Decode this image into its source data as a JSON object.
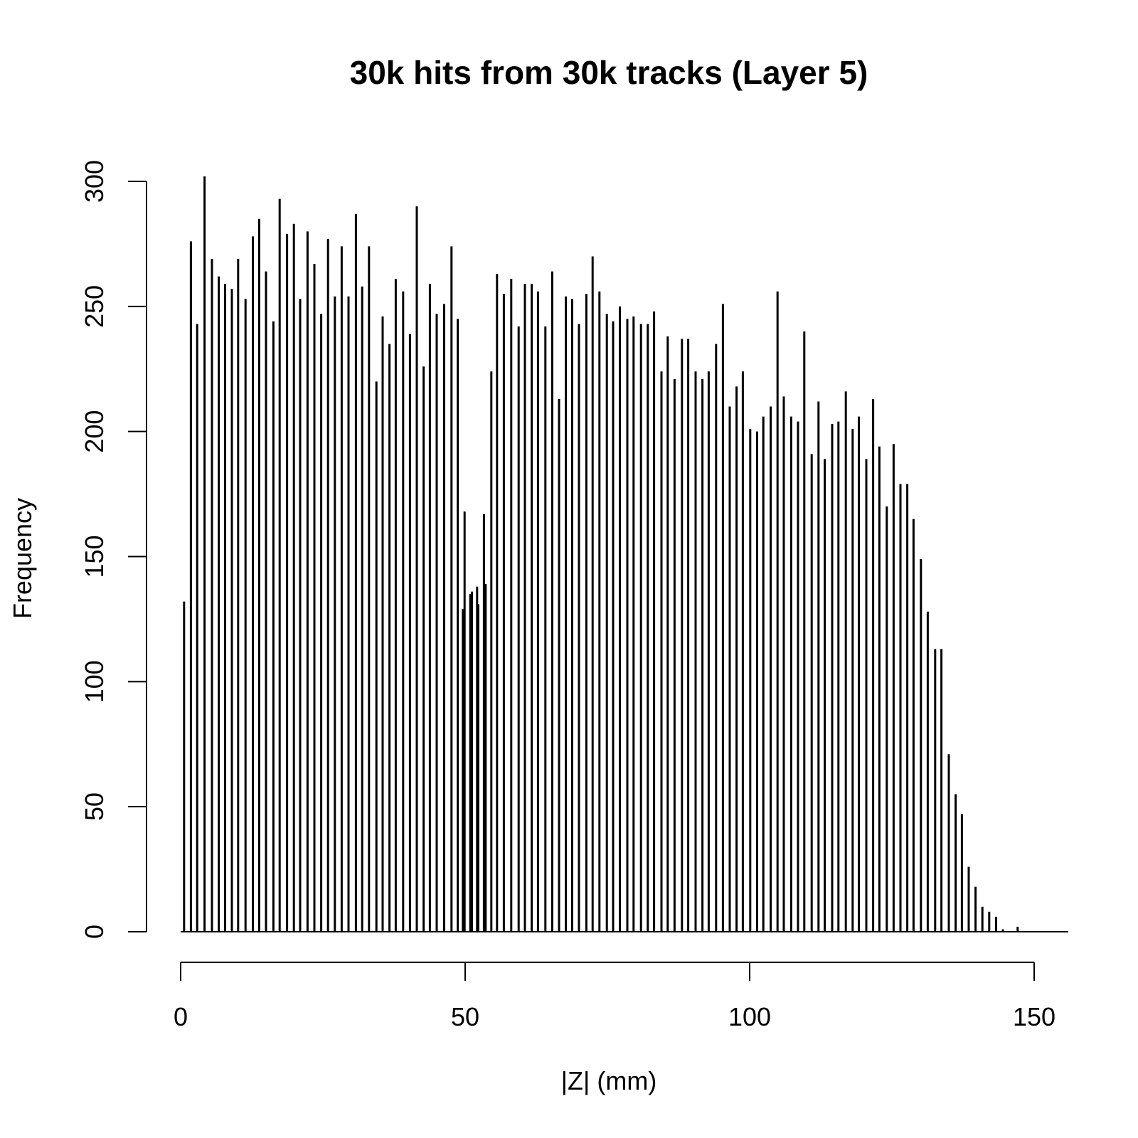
{
  "chart_data": {
    "type": "histogram",
    "title": "30k hits from 30k tracks (Layer 5)",
    "x_label": "|Z| (mm)",
    "y_label": "Frequency",
    "color": "#000000",
    "x": [
      0.6,
      1.8,
      2.9,
      4.2,
      5.5,
      6.7,
      7.8,
      9.0,
      10.1,
      11.4,
      12.7,
      13.8,
      15.0,
      16.3,
      17.4,
      18.7,
      19.9,
      21.0,
      22.3,
      23.5,
      24.7,
      25.9,
      27.1,
      28.3,
      29.5,
      30.8,
      31.9,
      33.1,
      34.4,
      35.5,
      36.7,
      37.8,
      39.1,
      40.3,
      41.5,
      42.7,
      43.8,
      45.0,
      46.3,
      47.6,
      48.7,
      49.6,
      49.9,
      50.9,
      51.2,
      52.1,
      52.3,
      53.3,
      53.6,
      54.6,
      55.6,
      56.8,
      58.1,
      59.4,
      60.5,
      61.7,
      62.8,
      64.1,
      65.3,
      66.5,
      67.7,
      68.8,
      70.0,
      71.3,
      72.4,
      73.6,
      74.9,
      76.0,
      77.2,
      78.5,
      79.6,
      80.9,
      82.1,
      83.2,
      84.5,
      85.6,
      86.8,
      88.1,
      89.2,
      90.5,
      91.7,
      92.8,
      94.1,
      95.3,
      96.5,
      97.7,
      98.8,
      100.1,
      101.3,
      102.4,
      103.7,
      104.9,
      106.0,
      107.3,
      108.5,
      109.6,
      110.9,
      112.1,
      113.2,
      114.5,
      115.6,
      116.9,
      118.1,
      119.2,
      120.5,
      121.7,
      122.8,
      124.1,
      125.3,
      126.5,
      127.7,
      128.8,
      130.1,
      131.3,
      132.6,
      133.7,
      135.0,
      136.2,
      137.3,
      138.5,
      139.7,
      140.9,
      142.1,
      143.3,
      144.5,
      147.1
    ],
    "values": [
      132,
      276,
      243,
      302,
      269,
      262,
      259,
      257,
      269,
      253,
      278,
      285,
      264,
      244,
      293,
      279,
      283,
      253,
      280,
      267,
      247,
      277,
      254,
      274,
      254,
      287,
      258,
      274,
      220,
      246,
      235,
      261,
      256,
      239,
      290,
      226,
      259,
      247,
      251,
      274,
      245,
      129,
      168,
      135,
      136,
      138,
      131,
      167,
      139,
      224,
      263,
      255,
      261,
      242,
      259,
      259,
      256,
      242,
      264,
      213,
      254,
      253,
      243,
      255,
      270,
      256,
      247,
      244,
      250,
      245,
      246,
      243,
      243,
      248,
      224,
      238,
      221,
      237,
      237,
      224,
      221,
      224,
      235,
      251,
      210,
      218,
      224,
      201,
      200,
      206,
      210,
      256,
      214,
      206,
      204,
      240,
      191,
      212,
      189,
      203,
      204,
      216,
      201,
      206,
      189,
      213,
      194,
      170,
      195,
      179,
      179,
      165,
      149,
      128,
      113,
      113,
      71,
      55,
      47,
      26,
      18,
      10,
      8,
      6,
      1,
      2
    ],
    "xlim": [
      0,
      156
    ],
    "xticks": [
      0,
      50,
      100,
      150
    ],
    "ylim": [
      0,
      300
    ],
    "yticks": [
      0,
      50,
      100,
      150,
      200,
      250,
      300
    ]
  }
}
